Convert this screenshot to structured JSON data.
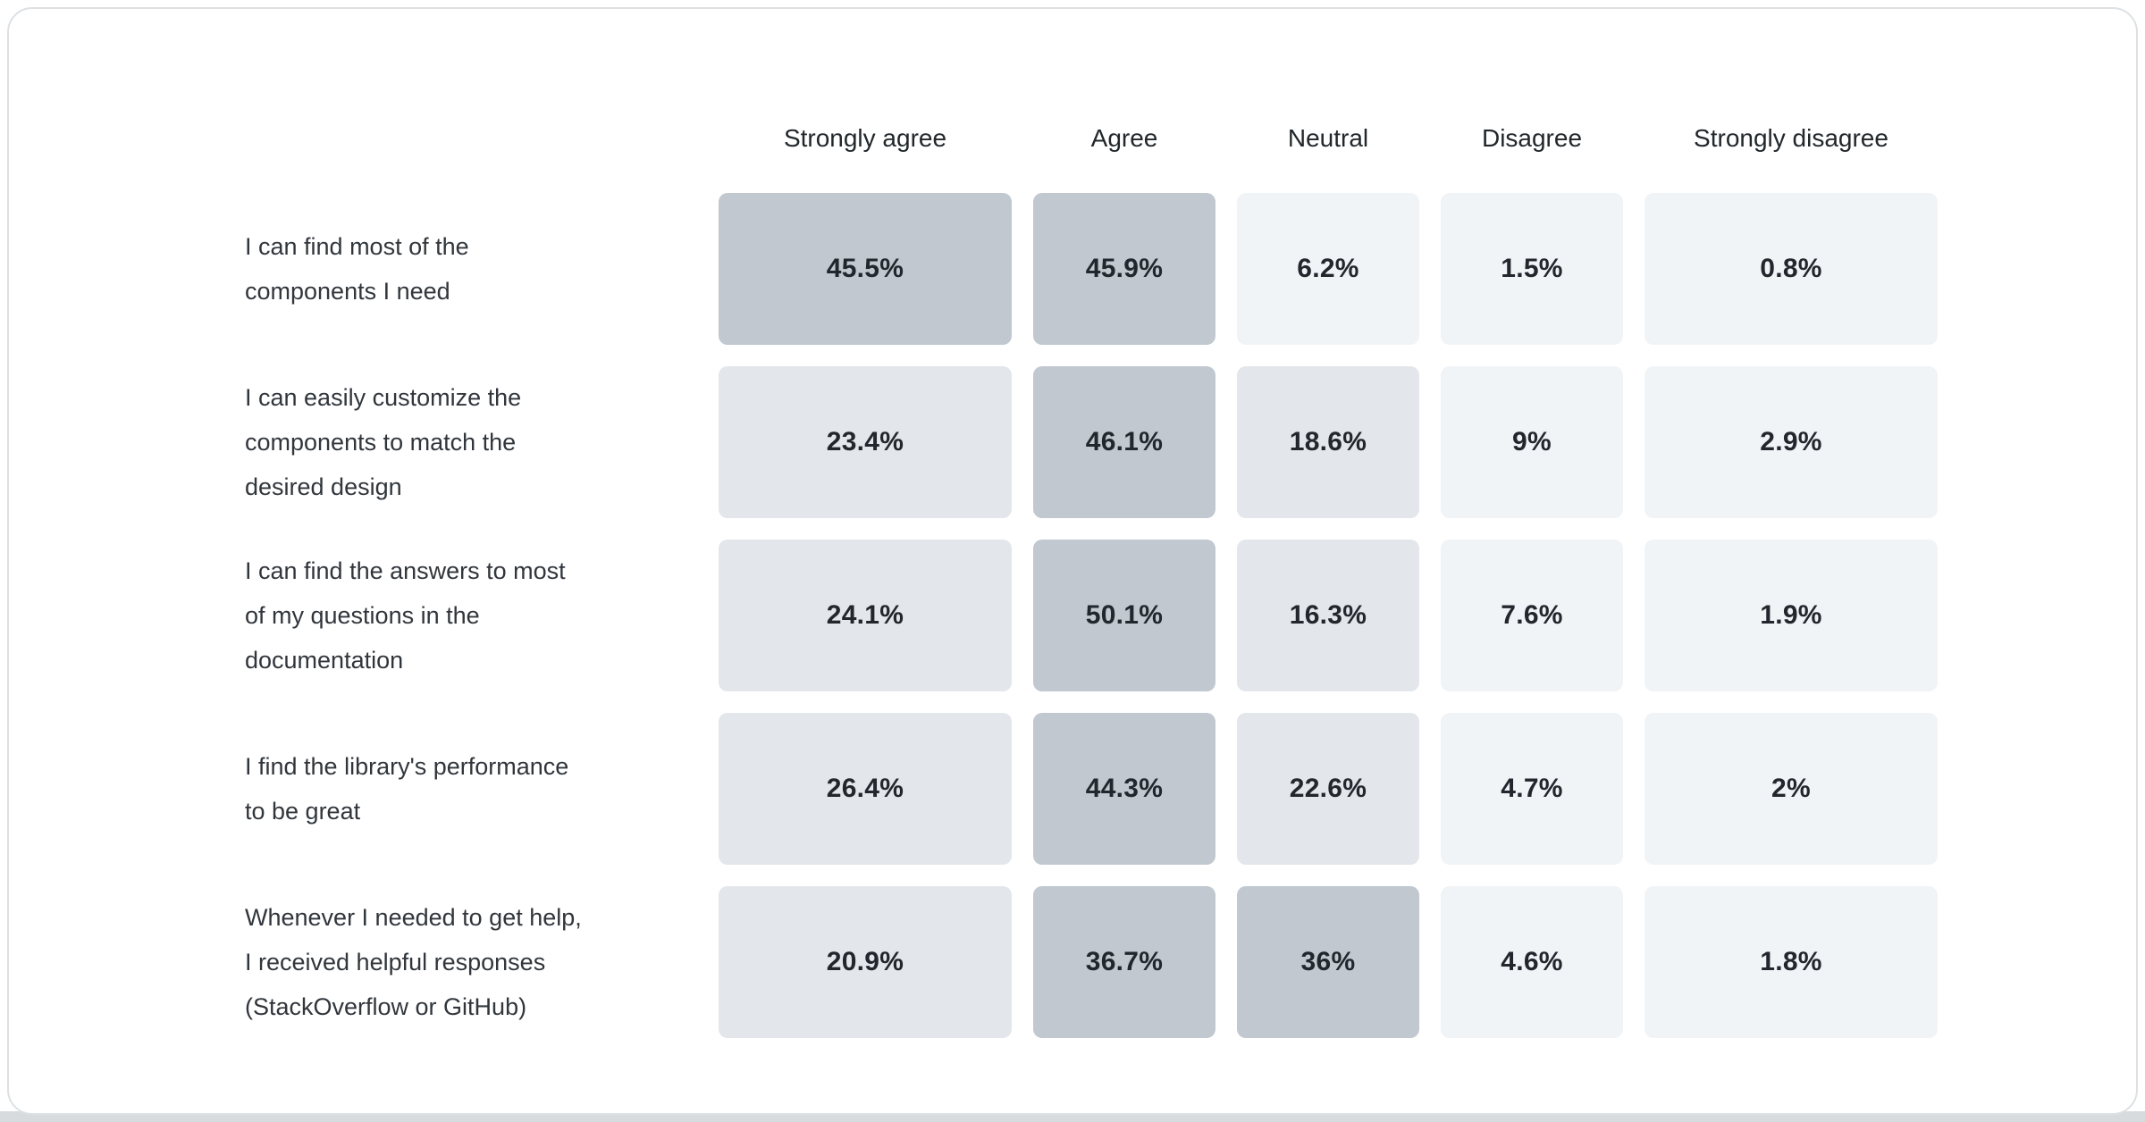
{
  "page": {
    "background": "#ffffff",
    "card_border": "#dde1e4",
    "bottom_strip_color": "#d7dbde",
    "card_background": "#ffffff"
  },
  "heat_scale": {
    "high_color": "#c1c8d0",
    "mid_color": "#e3e6ea",
    "low_color": "#f1f4f7",
    "high_min": 30,
    "mid_min": 10,
    "value_text_color": "#22272d"
  },
  "chart_data": {
    "type": "heatmap",
    "title": "",
    "columns": [
      "Strongly agree",
      "Agree",
      "Neutral",
      "Disagree",
      "Strongly disagree"
    ],
    "rows": [
      {
        "label": "I can find most of the components I need",
        "label_lines": [
          "I can find most of the",
          "components I need"
        ],
        "values": [
          45.5,
          45.9,
          6.2,
          1.5,
          0.8
        ],
        "display": [
          "45.5%",
          "45.9%",
          "6.2%",
          "1.5%",
          "0.8%"
        ]
      },
      {
        "label": "I can easily customize the components to match the desired design",
        "label_lines": [
          "I can easily customize the",
          "components to match the",
          "desired design"
        ],
        "values": [
          23.4,
          46.1,
          18.6,
          9,
          2.9
        ],
        "display": [
          "23.4%",
          "46.1%",
          "18.6%",
          "9%",
          "2.9%"
        ]
      },
      {
        "label": "I can find the answers to most of my questions in the documentation",
        "label_lines": [
          "I can find the answers to most",
          "of my questions in the",
          "documentation"
        ],
        "values": [
          24.1,
          50.1,
          16.3,
          7.6,
          1.9
        ],
        "display": [
          "24.1%",
          "50.1%",
          "16.3%",
          "7.6%",
          "1.9%"
        ]
      },
      {
        "label": "I find the library's performance to be great",
        "label_lines": [
          "I find the library's performance",
          "to be great"
        ],
        "values": [
          26.4,
          44.3,
          22.6,
          4.7,
          2
        ],
        "display": [
          "26.4%",
          "44.3%",
          "22.6%",
          "4.7%",
          "2%"
        ]
      },
      {
        "label": "Whenever I needed to get help, I received helpful responses (StackOverflow or GitHub)",
        "label_lines": [
          "Whenever I needed to get help,",
          "I received helpful responses",
          "(StackOverflow or GitHub)"
        ],
        "values": [
          20.9,
          36.7,
          36,
          4.6,
          1.8
        ],
        "display": [
          "20.9%",
          "36.7%",
          "36%",
          "4.6%",
          "1.8%"
        ]
      }
    ]
  }
}
